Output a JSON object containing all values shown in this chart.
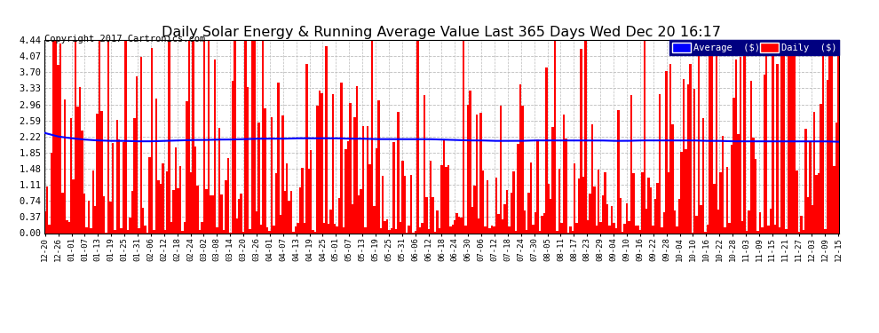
{
  "title": "Daily Solar Energy & Running Average Value Last 365 Days Wed Dec 20 16:17",
  "copyright": "Copyright 2017 Cartronics.com",
  "ylim": [
    0.0,
    4.44
  ],
  "yticks": [
    0.0,
    0.37,
    0.74,
    1.11,
    1.48,
    1.85,
    2.22,
    2.59,
    2.96,
    3.33,
    3.7,
    4.07,
    4.44
  ],
  "bar_color": "#FF0000",
  "avg_color": "#0000FF",
  "background_color": "#FFFFFF",
  "grid_color": "#BBBBBB",
  "title_fontsize": 11.5,
  "copyright_fontsize": 7.5,
  "legend_avg_label": "Average  ($)",
  "legend_daily_label": "Daily  ($)",
  "xtick_labels": [
    "12-20",
    "12-26",
    "01-01",
    "01-07",
    "01-13",
    "01-19",
    "01-25",
    "01-31",
    "02-06",
    "02-12",
    "02-18",
    "02-24",
    "03-02",
    "03-08",
    "03-14",
    "03-20",
    "03-26",
    "04-01",
    "04-07",
    "04-13",
    "04-19",
    "04-25",
    "05-01",
    "05-07",
    "05-13",
    "05-19",
    "05-25",
    "05-31",
    "06-06",
    "06-12",
    "06-18",
    "06-24",
    "06-30",
    "07-06",
    "07-12",
    "07-18",
    "07-24",
    "07-30",
    "08-05",
    "08-11",
    "08-17",
    "08-23",
    "08-29",
    "09-04",
    "09-10",
    "09-16",
    "09-22",
    "09-28",
    "10-04",
    "10-10",
    "10-16",
    "10-22",
    "10-28",
    "11-03",
    "11-09",
    "11-15",
    "11-21",
    "11-27",
    "12-03",
    "12-09",
    "12-15"
  ],
  "avg_line_y": [
    2.3,
    2.22,
    2.18,
    2.15,
    2.13,
    2.12,
    2.12,
    2.11,
    2.11,
    2.12,
    2.13,
    2.14,
    2.14,
    2.15,
    2.15,
    2.16,
    2.17,
    2.17,
    2.17,
    2.18,
    2.18,
    2.18,
    2.18,
    2.17,
    2.17,
    2.16,
    2.16,
    2.16,
    2.16,
    2.16,
    2.15,
    2.14,
    2.13,
    2.13,
    2.12,
    2.12,
    2.12,
    2.13,
    2.13,
    2.13,
    2.13,
    2.13,
    2.13,
    2.12,
    2.12,
    2.13,
    2.13,
    2.13,
    2.13,
    2.13,
    2.12,
    2.12,
    2.11,
    2.11,
    2.11,
    2.11,
    2.11,
    2.11,
    2.11,
    2.11,
    2.1
  ],
  "n_days": 365
}
